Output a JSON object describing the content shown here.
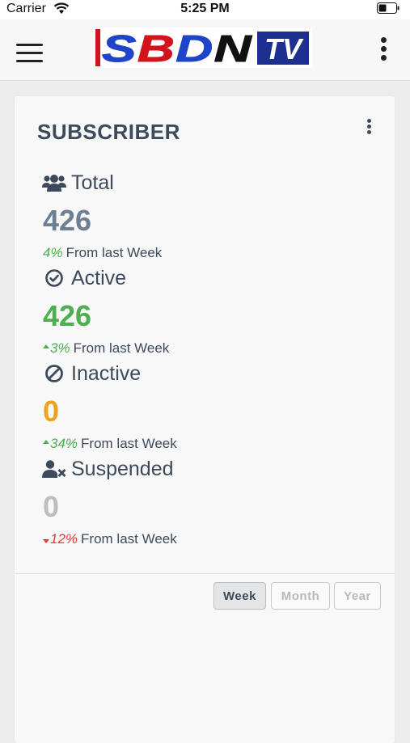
{
  "status_bar": {
    "carrier": "Carrier",
    "time": "5:25 PM"
  },
  "header": {
    "logo": {
      "text_main": "SBDN",
      "text_badge": "TV",
      "colors": {
        "red": "#d2131c",
        "navy": "#1d2f8f",
        "blue": "#1f44c9"
      }
    }
  },
  "card": {
    "title": "SUBSCRIBER",
    "stats": [
      {
        "icon": "users-icon",
        "label": "Total",
        "value": "426",
        "value_color": "#6c7f93",
        "change": "4%",
        "trend": "none",
        "change_text": "From last Week"
      },
      {
        "icon": "check-circle-icon",
        "label": "Active",
        "value": "426",
        "value_color": "#4caf50",
        "change": "3%",
        "trend": "up",
        "change_text": "From last Week"
      },
      {
        "icon": "ban-icon",
        "label": "Inactive",
        "value": "0",
        "value_color": "#f0a21a",
        "change": "34%",
        "trend": "up",
        "change_text": "From last Week"
      },
      {
        "icon": "user-times-icon",
        "label": "Suspended",
        "value": "0",
        "value_color": "#bdbdbd",
        "change": "12%",
        "trend": "down",
        "change_text": "From last Week"
      }
    ],
    "periods": [
      {
        "label": "Week",
        "active": true
      },
      {
        "label": "Month",
        "active": false
      },
      {
        "label": "Year",
        "active": false
      }
    ]
  }
}
